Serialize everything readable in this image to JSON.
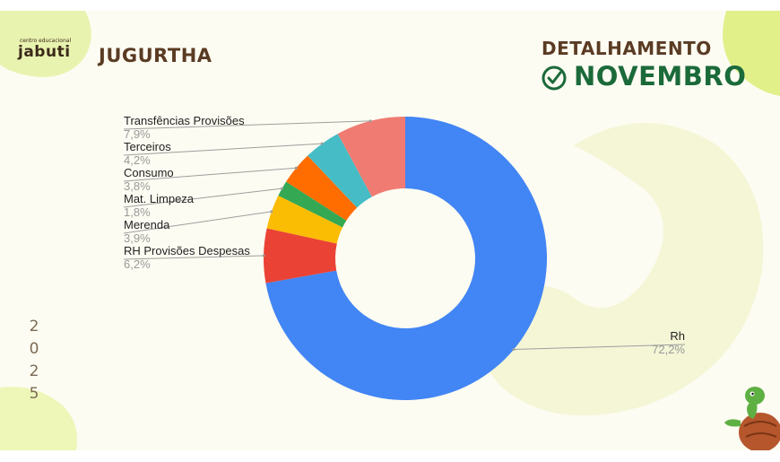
{
  "header": {
    "logo_small": "centro educacional",
    "logo_main": "jabuti",
    "title": "JUGURTHA",
    "subtitle": "DETALHAMENTO",
    "month": "NOVEMBRO"
  },
  "year_digits": [
    "2",
    "0",
    "2",
    "5"
  ],
  "icons": {
    "check": "check-circle-icon",
    "mascot": "turtle-icon"
  },
  "chart_data": {
    "type": "pie",
    "donut": true,
    "categories": [
      "Rh",
      "RH Provisões Despesas",
      "Merenda",
      "Mat. Limpeza",
      "Consumo",
      "Terceiros",
      "Transfências Provisões"
    ],
    "values": [
      72.2,
      6.2,
      3.9,
      1.8,
      3.8,
      4.2,
      7.9
    ],
    "value_labels": [
      "72,2%",
      "6,2%",
      "3,9%",
      "1,8%",
      "3,8%",
      "4,2%",
      "7,9%"
    ],
    "colors": [
      "#4285f4",
      "#ea4335",
      "#fbbc04",
      "#34a853",
      "#ff6d01",
      "#46bdc6",
      "#f07b72"
    ],
    "legend": "none",
    "labels": "outside-with-leader-lines"
  }
}
